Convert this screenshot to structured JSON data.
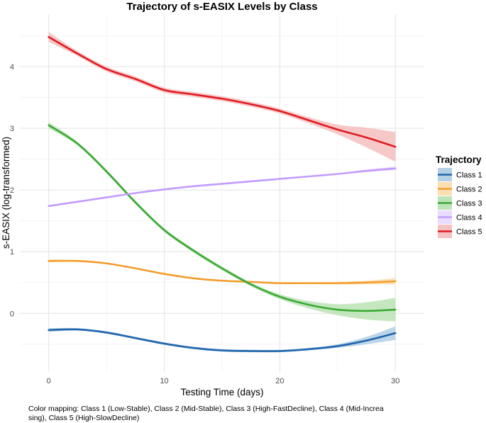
{
  "chart_data": {
    "type": "line",
    "title": "Trajectory of s-EASIX Levels by Class",
    "xlabel": "Testing Time (days)",
    "ylabel": "s-EASIX (log-transformed)",
    "xlim": [
      -2.5,
      32.5
    ],
    "ylim": [
      -0.95,
      4.85
    ],
    "xticks": [
      0,
      10,
      20,
      30
    ],
    "xtick_labels": [
      "0",
      "10",
      "20",
      "30"
    ],
    "yticks": [
      0,
      1,
      2,
      3,
      4
    ],
    "ytick_labels": [
      "0",
      "1",
      "2",
      "3",
      "4"
    ],
    "grid": true,
    "legend_title": "Trajectory",
    "legend_position": "right",
    "x": [
      0,
      2.5,
      5,
      7.5,
      10,
      12.5,
      15,
      17.5,
      20,
      22.5,
      25,
      27.5,
      30
    ],
    "series": [
      {
        "name": "Class 1",
        "color": "#2166ac",
        "band_color": "#a6c8e0",
        "values": [
          -0.27,
          -0.26,
          -0.31,
          -0.4,
          -0.49,
          -0.56,
          -0.6,
          -0.61,
          -0.61,
          -0.58,
          -0.53,
          -0.44,
          -0.32
        ],
        "ci_halfwidth": [
          0.03,
          0.02,
          0.02,
          0.02,
          0.02,
          0.02,
          0.02,
          0.02,
          0.02,
          0.02,
          0.03,
          0.06,
          0.11
        ]
      },
      {
        "name": "Class 2",
        "color": "#f39c2b",
        "band_color": "#fbd9a3",
        "values": [
          0.85,
          0.85,
          0.81,
          0.73,
          0.64,
          0.57,
          0.53,
          0.51,
          0.49,
          0.49,
          0.49,
          0.5,
          0.52
        ],
        "ci_halfwidth": [
          0.02,
          0.01,
          0.01,
          0.01,
          0.01,
          0.01,
          0.01,
          0.01,
          0.01,
          0.01,
          0.02,
          0.03,
          0.05
        ]
      },
      {
        "name": "Class 3",
        "color": "#3aaa35",
        "band_color": "#b2dfab",
        "values": [
          3.05,
          2.75,
          2.3,
          1.8,
          1.35,
          1.02,
          0.73,
          0.47,
          0.27,
          0.14,
          0.06,
          0.04,
          0.06
        ],
        "ci_halfwidth": [
          0.05,
          0.03,
          0.03,
          0.03,
          0.03,
          0.03,
          0.03,
          0.03,
          0.04,
          0.06,
          0.09,
          0.14,
          0.19
        ]
      },
      {
        "name": "Class 4",
        "color": "#c39bff",
        "band_color": "#e6d6ff",
        "values": [
          1.74,
          1.81,
          1.88,
          1.95,
          2.01,
          2.06,
          2.1,
          2.14,
          2.18,
          2.22,
          2.26,
          2.31,
          2.35
        ],
        "ci_halfwidth": [
          0.01,
          0.01,
          0.01,
          0.01,
          0.01,
          0.01,
          0.01,
          0.01,
          0.01,
          0.01,
          0.01,
          0.02,
          0.03
        ]
      },
      {
        "name": "Class 5",
        "color": "#e11b22",
        "band_color": "#f3b6b6",
        "values": [
          4.48,
          4.21,
          3.96,
          3.8,
          3.62,
          3.55,
          3.48,
          3.39,
          3.28,
          3.13,
          2.98,
          2.85,
          2.7
        ],
        "ci_halfwidth": [
          0.08,
          0.04,
          0.04,
          0.04,
          0.04,
          0.04,
          0.04,
          0.04,
          0.04,
          0.05,
          0.08,
          0.16,
          0.24
        ]
      }
    ]
  },
  "caption": {
    "line1": "Color mapping: Class 1 (Low-Stable), Class 2 (Mid-Stable), Class 3 (High-FastDecline), Class 4 (Mid-Increa",
    "line2": "sing), Class 5 (High-SlowDecline)"
  }
}
